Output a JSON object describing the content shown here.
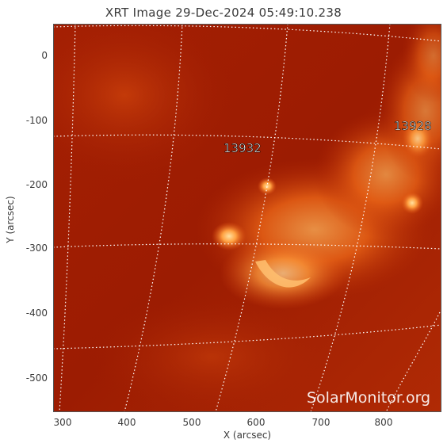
{
  "title": "XRT Image 29-Dec-2024 05:49:10.238",
  "xaxis": {
    "label": "X (arcsec)",
    "ticks": [
      "300",
      "400",
      "500",
      "600",
      "700",
      "800"
    ]
  },
  "yaxis": {
    "label": "Y (arcsec)",
    "ticks": [
      "0",
      "-100",
      "-200",
      "-300",
      "-400",
      "-500"
    ]
  },
  "regions": [
    {
      "id": "13932"
    },
    {
      "id": "13928"
    }
  ],
  "watermark": "SolarMonitor.org",
  "colors": {
    "background_sun": "#a21e02",
    "bright_region": "#ff9a3a",
    "hot_core": "#ffd080",
    "grid": "#ffffff"
  }
}
